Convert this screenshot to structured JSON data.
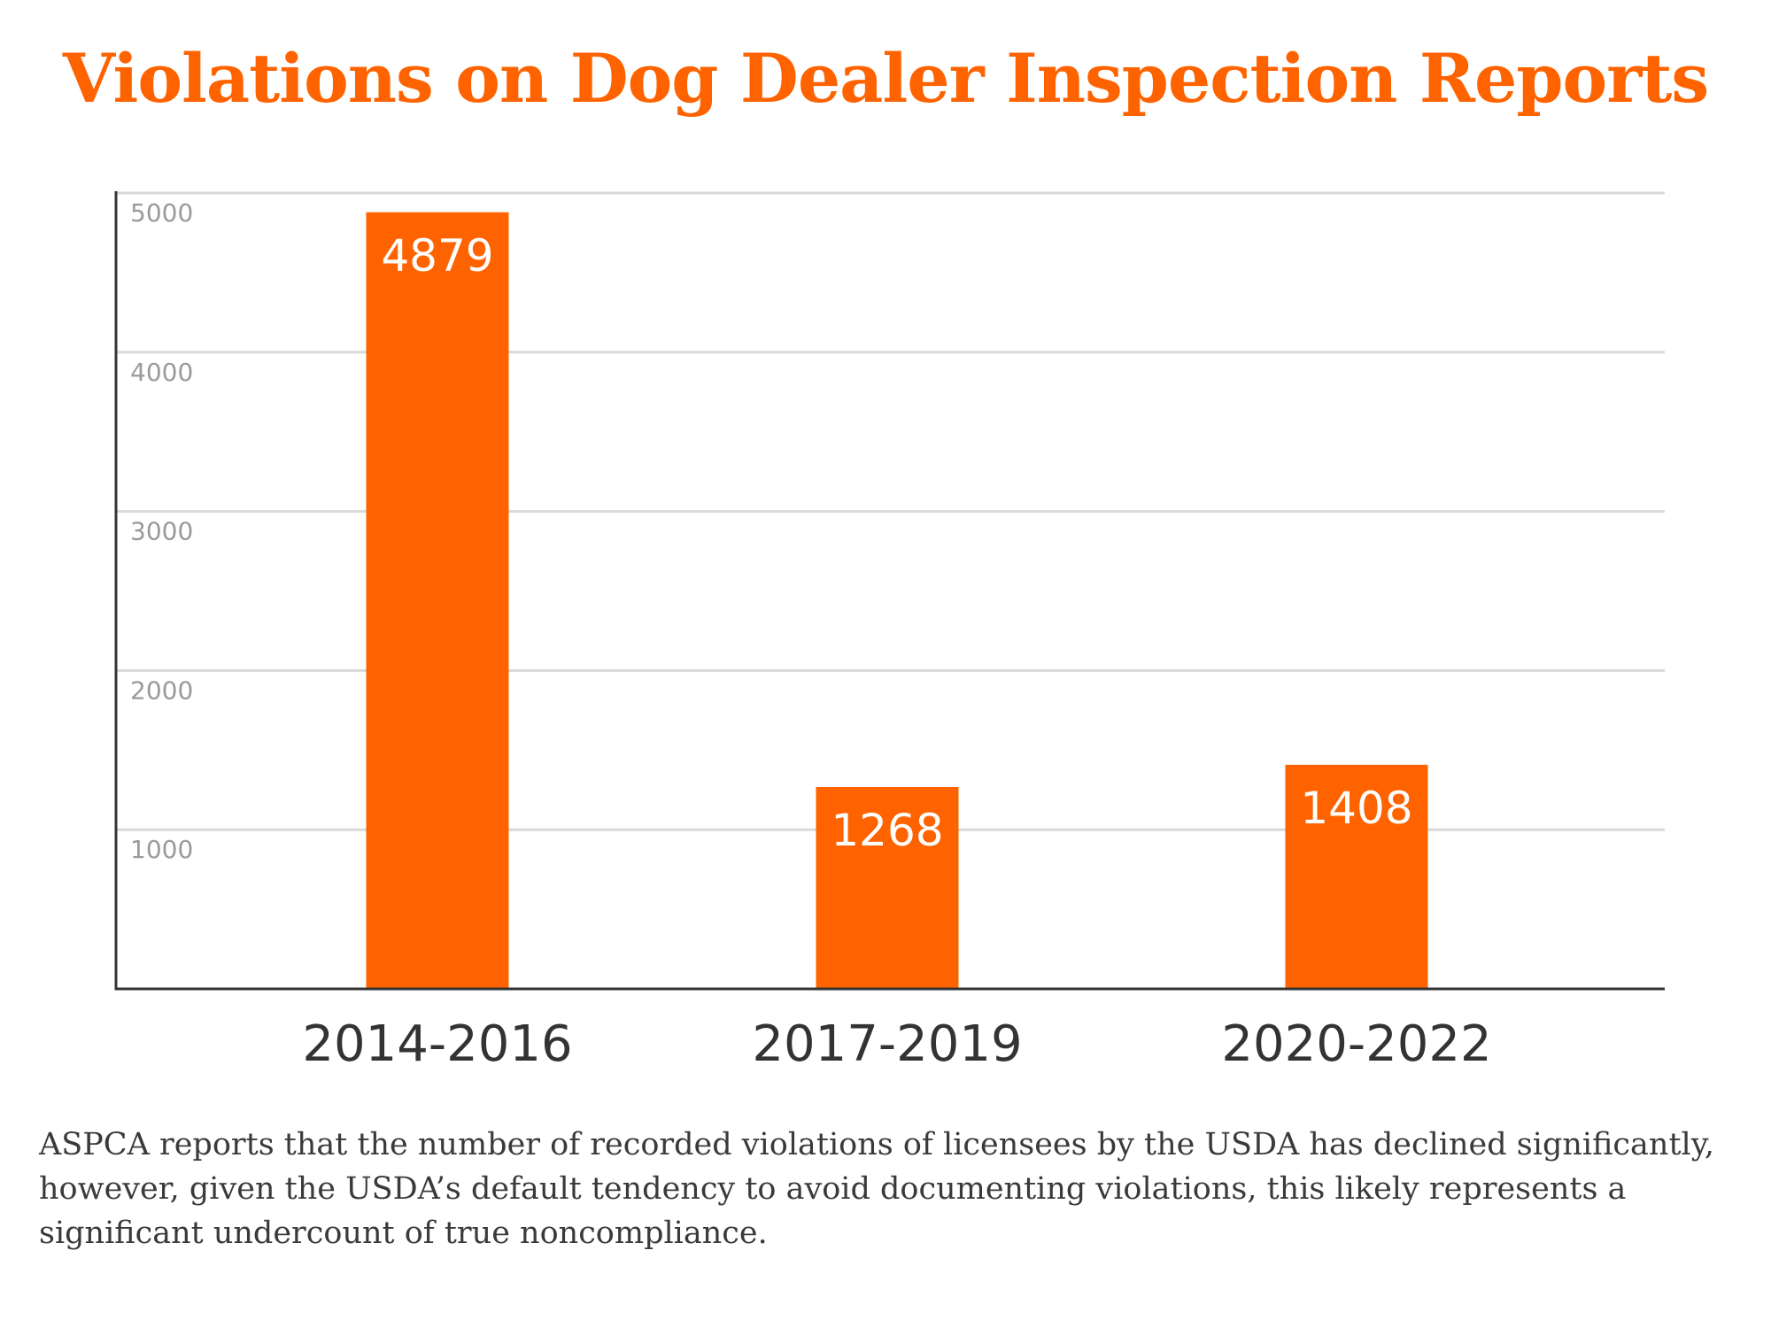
{
  "title": "Violations on Dog Dealer Inspection Reports",
  "caption": "ASPCA reports that the number of recorded violations of licensees by the USDA has declined significantly, however, given the USDA’s default tendency to avoid documenting violations, this likely represents a significant undercount of true noncompliance.",
  "colors": {
    "bar": "#fe6300",
    "title": "#fe6300",
    "grid": "#d9d9d9",
    "axis": "#333333",
    "tick_label": "#9a9a9a",
    "category_label": "#333333",
    "value_label": "#ffffff"
  },
  "chart_data": {
    "type": "bar",
    "title": "Violations on Dog Dealer Inspection Reports",
    "xlabel": "",
    "ylabel": "",
    "categories": [
      "2014-2016",
      "2017-2019",
      "2020-2022"
    ],
    "values": [
      4879,
      1268,
      1408
    ],
    "ylim": [
      0,
      5000
    ],
    "yticks": [
      1000,
      2000,
      3000,
      4000,
      5000
    ],
    "grid": true,
    "legend": "none",
    "data_labels": true
  }
}
